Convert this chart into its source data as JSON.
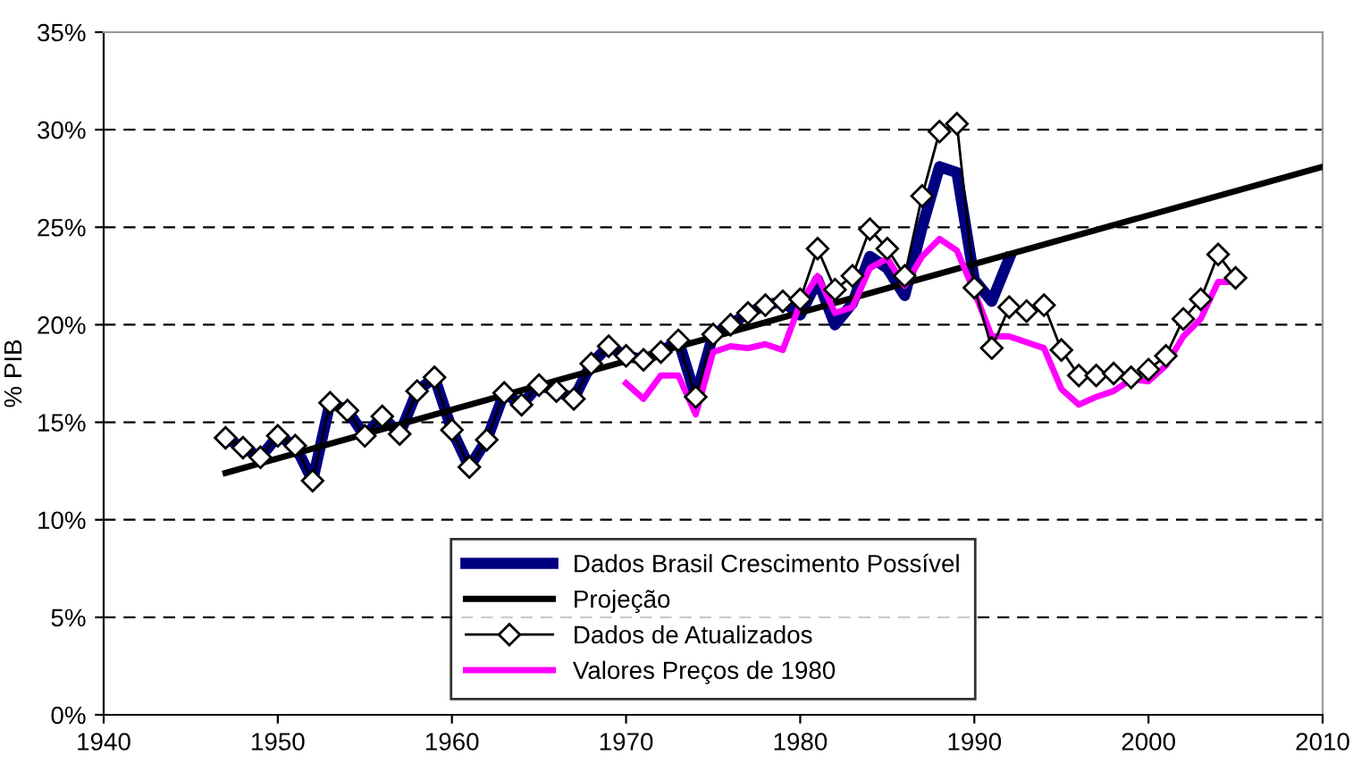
{
  "chart_data": {
    "type": "line",
    "ylabel": "% PIB",
    "xlim": [
      1940,
      2010
    ],
    "xticks": [
      1940,
      1950,
      1960,
      1970,
      1980,
      1990,
      2000,
      2010
    ],
    "ylim": [
      0,
      35
    ],
    "yticks": [
      {
        "value": 0,
        "label": "0%"
      },
      {
        "value": 5,
        "label": "5%"
      },
      {
        "value": 10,
        "label": "10%"
      },
      {
        "value": 15,
        "label": "15%"
      },
      {
        "value": 20,
        "label": "20%"
      },
      {
        "value": 25,
        "label": "25%"
      },
      {
        "value": 30,
        "label": "30%"
      },
      {
        "value": 35,
        "label": "35%"
      }
    ],
    "grid": "y",
    "legend": "bottom",
    "series": [
      {
        "name": "Dados Brasil Crescimento Possível",
        "color": "#000080",
        "marker": "none",
        "x": [
          1947,
          1948,
          1949,
          1950,
          1951,
          1952,
          1953,
          1954,
          1955,
          1956,
          1957,
          1958,
          1959,
          1960,
          1961,
          1962,
          1963,
          1964,
          1965,
          1966,
          1967,
          1968,
          1969,
          1970,
          1971,
          1972,
          1973,
          1974,
          1975,
          1976,
          1977,
          1978,
          1979,
          1980,
          1981,
          1982,
          1983,
          1984,
          1985,
          1986,
          1987,
          1988,
          1989,
          1990,
          1991,
          1992
        ],
        "values": [
          14.2,
          13.7,
          13.2,
          14.3,
          13.8,
          12.0,
          16.0,
          15.6,
          14.3,
          15.3,
          14.4,
          16.6,
          17.3,
          14.6,
          12.7,
          14.1,
          16.5,
          15.9,
          16.9,
          16.6,
          16.2,
          18.0,
          18.9,
          18.4,
          18.2,
          18.6,
          19.2,
          16.3,
          19.5,
          20.0,
          20.6,
          21.0,
          21.2,
          20.5,
          22.3,
          20.0,
          21.1,
          23.5,
          22.9,
          21.5,
          25.0,
          28.1,
          27.8,
          22.3,
          21.2,
          23.4
        ]
      },
      {
        "name": "Projeção",
        "color": "#000000",
        "marker": "none",
        "x": [
          1947,
          2010
        ],
        "values": [
          12.4,
          28.1
        ]
      },
      {
        "name": "Dados de Atualizados",
        "color": "#000000",
        "marker": "diamond",
        "x": [
          1947,
          1948,
          1949,
          1950,
          1951,
          1952,
          1953,
          1954,
          1955,
          1956,
          1957,
          1958,
          1959,
          1960,
          1961,
          1962,
          1963,
          1964,
          1965,
          1966,
          1967,
          1968,
          1969,
          1970,
          1971,
          1972,
          1973,
          1974,
          1975,
          1976,
          1977,
          1978,
          1979,
          1980,
          1981,
          1982,
          1983,
          1984,
          1985,
          1986,
          1987,
          1988,
          1989,
          1990,
          1991,
          1992,
          1993,
          1994,
          1995,
          1996,
          1997,
          1998,
          1999,
          2000,
          2001,
          2002,
          2003,
          2004,
          2005
        ],
        "values": [
          14.2,
          13.7,
          13.2,
          14.3,
          13.8,
          12.0,
          16.0,
          15.6,
          14.3,
          15.3,
          14.4,
          16.6,
          17.3,
          14.6,
          12.7,
          14.1,
          16.5,
          15.9,
          16.9,
          16.6,
          16.2,
          18.0,
          18.9,
          18.4,
          18.2,
          18.6,
          19.2,
          16.3,
          19.5,
          20.0,
          20.6,
          21.0,
          21.2,
          21.3,
          23.9,
          21.8,
          22.5,
          24.9,
          23.9,
          22.5,
          26.6,
          29.9,
          30.3,
          21.9,
          18.8,
          20.9,
          20.7,
          21.0,
          18.7,
          17.4,
          17.4,
          17.5,
          17.3,
          17.7,
          18.4,
          20.3,
          21.3,
          23.6,
          22.4
        ]
      },
      {
        "name": "Valores Preços de 1980",
        "color": "#ff00ff",
        "marker": "none",
        "x": [
          1970,
          1971,
          1972,
          1973,
          1974,
          1975,
          1976,
          1977,
          1978,
          1979,
          1980,
          1981,
          1982,
          1983,
          1984,
          1985,
          1986,
          1987,
          1988,
          1989,
          1990,
          1991,
          1992,
          1993,
          1994,
          1995,
          1996,
          1997,
          1998,
          1999,
          2000,
          2001,
          2002,
          2003,
          2004,
          2005
        ],
        "values": [
          17.0,
          16.2,
          17.4,
          17.4,
          15.4,
          18.6,
          18.9,
          18.8,
          19.0,
          18.7,
          21.1,
          22.5,
          20.6,
          20.9,
          22.9,
          23.4,
          22.0,
          23.5,
          24.4,
          23.8,
          21.7,
          19.4,
          19.4,
          19.1,
          18.8,
          16.7,
          15.9,
          16.3,
          16.6,
          17.2,
          17.1,
          17.9,
          19.4,
          20.3,
          22.2,
          22.2
        ]
      }
    ]
  }
}
